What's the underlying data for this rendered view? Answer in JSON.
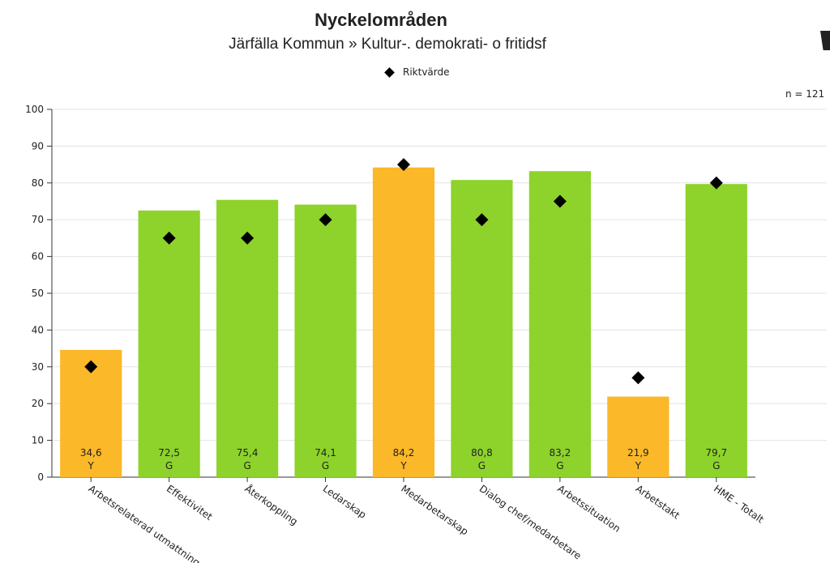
{
  "chart_data": {
    "type": "bar",
    "title": "Nyckelområden",
    "subtitle": "Järfälla Kommun » Kultur-. demokrati- o fritidsf",
    "n_label": "n = 121",
    "legend": [
      {
        "name": "Riktvärde",
        "marker": "diamond",
        "color": "#000000"
      }
    ],
    "legend_position": "top-center",
    "ylim": [
      0,
      100
    ],
    "yticks": [
      0,
      10,
      20,
      30,
      40,
      50,
      60,
      70,
      80,
      90,
      100
    ],
    "grid": true,
    "categories": [
      "Arbetsrelaterad utmattning",
      "Effektivitet",
      "Återkoppling",
      "Ledarskap",
      "Medarbetarskap",
      "Dialog chef/medarbetare",
      "Arbetssituation",
      "Arbetstakt",
      "HME - Totalt"
    ],
    "values": [
      34.6,
      72.5,
      75.4,
      74.1,
      84.2,
      80.8,
      83.2,
      21.9,
      79.7
    ],
    "value_labels": [
      "34,6",
      "72,5",
      "75,4",
      "74,1",
      "84,2",
      "80,8",
      "83,2",
      "21,9",
      "79,7"
    ],
    "grades": [
      "Y",
      "G",
      "G",
      "G",
      "Y",
      "G",
      "G",
      "Y",
      "G"
    ],
    "targets": [
      30,
      65,
      65,
      70,
      85,
      70,
      75,
      27,
      80
    ],
    "grade_colors": {
      "Y": "#FBB829",
      "G": "#8DD32B"
    }
  }
}
